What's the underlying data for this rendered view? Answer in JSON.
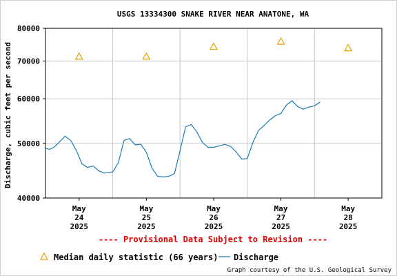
{
  "chart_data": {
    "type": "line",
    "title": "USGS 13334300 SNAKE RIVER NEAR ANATONE, WA",
    "ylabel": "Discharge, cubic feet per second",
    "xlabel": "",
    "y_scale": "log",
    "ylim": [
      40000,
      80000
    ],
    "yticks": [
      "40000",
      "50000",
      "60000",
      "70000",
      "80000"
    ],
    "ytick_values": [
      40000,
      50000,
      60000,
      70000,
      80000
    ],
    "xlim": [
      "2025-05-24T00:00",
      "2025-05-29T00:00"
    ],
    "xticks": [
      {
        "line1": "May",
        "line2": "24",
        "line3": "2025"
      },
      {
        "line1": "May",
        "line2": "25",
        "line3": "2025"
      },
      {
        "line1": "May",
        "line2": "26",
        "line3": "2025"
      },
      {
        "line1": "May",
        "line2": "27",
        "line3": "2025"
      },
      {
        "line1": "May",
        "line2": "28",
        "line3": "2025"
      }
    ],
    "grid": true,
    "series": [
      {
        "name": "Median daily statistic (66 years)",
        "marker": "triangle",
        "color": "#e8a000",
        "x": [
          "2025-05-24T12:00",
          "2025-05-25T12:00",
          "2025-05-26T12:00",
          "2025-05-27T12:00",
          "2025-05-28T12:00"
        ],
        "y": [
          71300,
          71300,
          74200,
          75800,
          73800
        ]
      },
      {
        "name": "Discharge",
        "marker": "line",
        "color": "#1a7ab8",
        "x": [
          "2025-05-24T00:00",
          "2025-05-24T01:30",
          "2025-05-24T03:00",
          "2025-05-24T05:00",
          "2025-05-24T07:00",
          "2025-05-24T09:00",
          "2025-05-24T11:00",
          "2025-05-24T13:00",
          "2025-05-24T15:00",
          "2025-05-24T17:00",
          "2025-05-24T19:00",
          "2025-05-24T21:00",
          "2025-05-25T00:00",
          "2025-05-25T02:00",
          "2025-05-25T04:00",
          "2025-05-25T06:00",
          "2025-05-25T08:00",
          "2025-05-25T10:00",
          "2025-05-25T12:00",
          "2025-05-25T14:00",
          "2025-05-25T16:00",
          "2025-05-25T18:00",
          "2025-05-25T20:00",
          "2025-05-25T22:00",
          "2025-05-26T00:00",
          "2025-05-26T02:00",
          "2025-05-26T04:00",
          "2025-05-26T06:00",
          "2025-05-26T08:00",
          "2025-05-26T10:00",
          "2025-05-26T12:00",
          "2025-05-26T14:00",
          "2025-05-26T16:00",
          "2025-05-26T18:00",
          "2025-05-26T20:00",
          "2025-05-26T22:00",
          "2025-05-27T00:00",
          "2025-05-27T02:00",
          "2025-05-27T04:00",
          "2025-05-27T06:00",
          "2025-05-27T08:00",
          "2025-05-27T10:00",
          "2025-05-27T12:00",
          "2025-05-27T14:00",
          "2025-05-27T16:00",
          "2025-05-27T18:00",
          "2025-05-27T20:00",
          "2025-05-27T22:00",
          "2025-05-28T00:00",
          "2025-05-28T02:00"
        ],
        "y": [
          49000,
          48800,
          49200,
          50300,
          51500,
          50600,
          48600,
          46000,
          45300,
          45600,
          44700,
          44300,
          44500,
          46200,
          50600,
          51000,
          49700,
          49800,
          48200,
          45200,
          43700,
          43600,
          43700,
          44200,
          48500,
          53500,
          54000,
          52400,
          50200,
          49200,
          49200,
          49500,
          49800,
          49400,
          48300,
          46900,
          47000,
          50200,
          52700,
          53800,
          55000,
          56000,
          56500,
          58500,
          59500,
          58100,
          57500,
          58000,
          58300,
          59200
        ]
      }
    ]
  },
  "provisional_notice": "---- Provisional Data Subject to Revision ----",
  "legend": {
    "median_label": "Median daily statistic (66 years)",
    "discharge_label": "Discharge"
  },
  "credit": "Graph courtesy of the U.S. Geological Survey",
  "colors": {
    "grid": "#c8c8c8",
    "axis": "#000000",
    "provisional": "#e00000",
    "median": "#e8a000",
    "discharge": "#1a7ab8"
  }
}
